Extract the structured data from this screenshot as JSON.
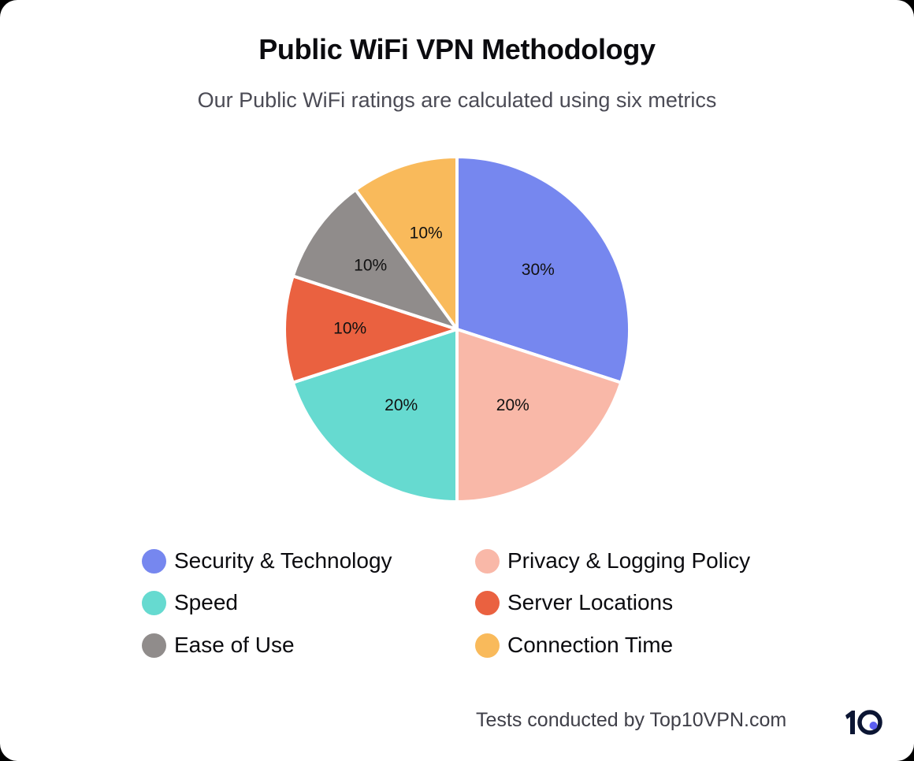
{
  "title": "Public WiFi VPN Methodology",
  "subtitle": "Our Public WiFi ratings are calculated using six metrics",
  "footer": {
    "credit": "Tests conducted by Top10VPN.com",
    "logo_icon": "top10vpn-logo-icon",
    "logo_text": "10",
    "logo_dot_color": "#5b5ef0",
    "logo_color": "#0b1533"
  },
  "legend": [
    {
      "label": "Security & Technology",
      "color": "#7687ef"
    },
    {
      "label": "Privacy & Logging Policy",
      "color": "#f9b8a8"
    },
    {
      "label": "Speed",
      "color": "#66dad0"
    },
    {
      "label": "Server Locations",
      "color": "#ea6140"
    },
    {
      "label": "Ease of Use",
      "color": "#908c8b"
    },
    {
      "label": "Connection Time",
      "color": "#f9ba5b"
    }
  ],
  "chart_data": {
    "type": "pie",
    "title": "Public WiFi VPN Methodology",
    "subtitle": "Our Public WiFi ratings are calculated using six metrics",
    "categories": [
      "Security & Technology",
      "Privacy & Logging Policy",
      "Speed",
      "Server Locations",
      "Ease of Use",
      "Connection Time"
    ],
    "values": [
      30,
      20,
      20,
      10,
      10,
      10
    ],
    "labels": [
      "30%",
      "20%",
      "20%",
      "10%",
      "10%",
      "10%"
    ],
    "colors": [
      "#7687ef",
      "#f9b8a8",
      "#66dad0",
      "#ea6140",
      "#908c8b",
      "#f9ba5b"
    ],
    "start_angle": "12 o'clock",
    "direction": "clockwise",
    "legend_position": "bottom, two columns"
  }
}
